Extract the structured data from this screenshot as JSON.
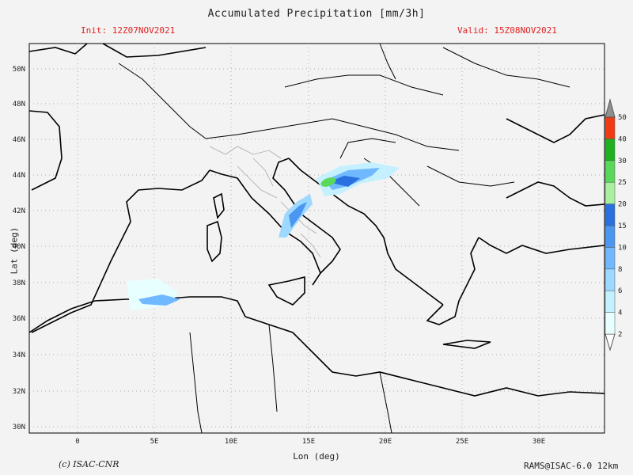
{
  "header": {
    "title": "Accumulated Precipitation [mm/3h]",
    "init": "Init: 12Z07NOV2021",
    "valid": "Valid: 15Z08NOV2021"
  },
  "axes": {
    "ylabel": "Lat (deg)",
    "xlabel": "Lon (deg)",
    "lat_ticks": [
      "50N",
      "48N",
      "46N",
      "44N",
      "42N",
      "40N",
      "38N",
      "36N",
      "34N",
      "32N",
      "30N"
    ],
    "lon_ticks": [
      "0",
      "5E",
      "10E",
      "15E",
      "20E",
      "25E",
      "30E"
    ]
  },
  "colorbar": {
    "levels": [
      "2",
      "4",
      "6",
      "8",
      "10",
      "15",
      "20",
      "25",
      "30",
      "40",
      "50"
    ],
    "colors": [
      "#e8ffff",
      "#c4f0ff",
      "#9cd8ff",
      "#70b8ff",
      "#4a96f0",
      "#2a70e0",
      "#a8f0a0",
      "#5ad85a",
      "#20b020",
      "#f03c14",
      "#909090"
    ]
  },
  "footer": {
    "copyright": "(c) ISAC-CNR",
    "model": "RAMS@ISAC-6.0 12km"
  }
}
